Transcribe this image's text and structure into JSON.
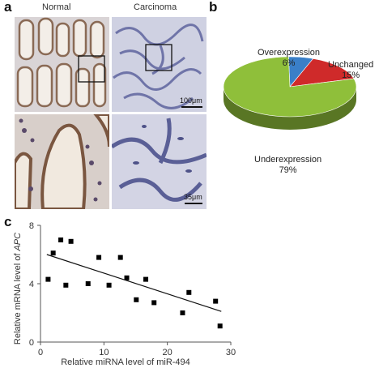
{
  "panel_a": {
    "letter": "a",
    "normal_label": "Normal",
    "carcinoma_label": "Carcinoma",
    "scale_top": "100μm",
    "scale_bottom": "35μm"
  },
  "panel_b": {
    "letter": "b",
    "chart_data": {
      "type": "pie",
      "slices": [
        {
          "label": "Overexpression",
          "percent_label": "6%",
          "value": 6,
          "color": "#3a7fc8"
        },
        {
          "label": "Unchanged",
          "percent_label": "15%",
          "value": 15,
          "color": "#cf2a2a"
        },
        {
          "label": "Underexpression",
          "percent_label": "79%",
          "value": 79,
          "color": "#8fbf3a"
        }
      ]
    }
  },
  "panel_c": {
    "letter": "c",
    "chart_data": {
      "type": "scatter",
      "xlabel": "Relative miRNA level of miR-494",
      "ylabel_prefix": "Relative mRNA level of ",
      "ylabel_gene": "APC",
      "xlim": [
        0,
        30
      ],
      "ylim": [
        0,
        8
      ],
      "xticks": [
        0,
        10,
        20,
        30
      ],
      "yticks": [
        0,
        4,
        8
      ],
      "points": [
        [
          1.2,
          4.3
        ],
        [
          2.0,
          6.1
        ],
        [
          3.2,
          7.0
        ],
        [
          4.0,
          3.9
        ],
        [
          4.8,
          6.9
        ],
        [
          7.5,
          4.0
        ],
        [
          9.2,
          5.8
        ],
        [
          10.8,
          3.9
        ],
        [
          12.6,
          5.8
        ],
        [
          13.6,
          4.4
        ],
        [
          15.1,
          2.9
        ],
        [
          16.6,
          4.3
        ],
        [
          17.9,
          2.7
        ],
        [
          22.4,
          2.0
        ],
        [
          23.4,
          3.4
        ],
        [
          27.6,
          2.8
        ],
        [
          28.3,
          1.1
        ]
      ],
      "trendline": {
        "x": [
          1,
          28.5
        ],
        "y": [
          6.0,
          2.1
        ]
      }
    }
  }
}
